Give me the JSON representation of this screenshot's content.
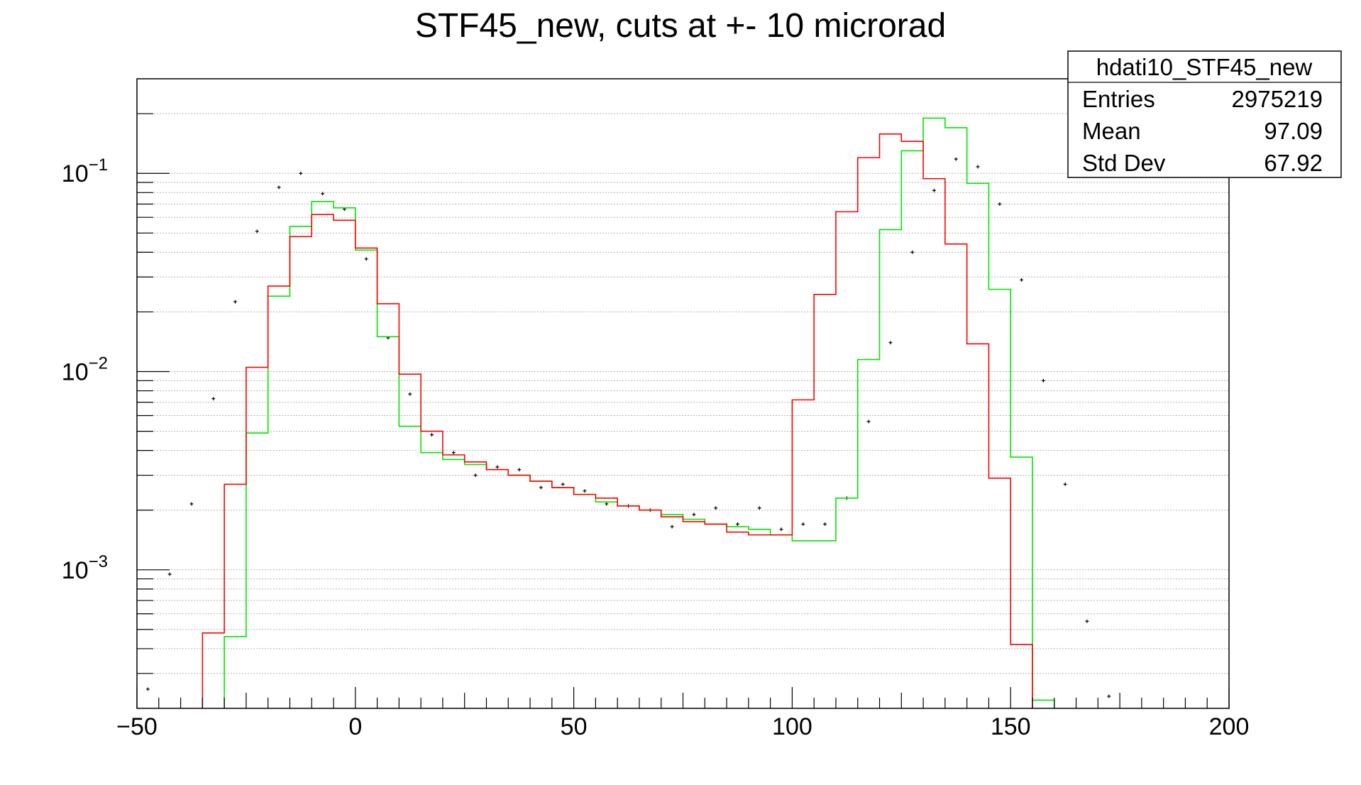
{
  "chart_data": {
    "type": "histogram",
    "title": "STF45_new, cuts at +- 10 microrad",
    "xlabel": "",
    "ylabel": "",
    "xlim": [
      -50,
      200
    ],
    "ylim": [
      0.0002,
      0.3
    ],
    "y_scale": "log",
    "grid": "horizontal",
    "bin_edges": [
      -50,
      -45,
      -40,
      -35,
      -30,
      -25,
      -20,
      -15,
      -10,
      -5,
      0,
      5,
      10,
      15,
      20,
      25,
      30,
      35,
      40,
      45,
      50,
      55,
      60,
      65,
      70,
      75,
      80,
      85,
      90,
      95,
      100,
      105,
      110,
      115,
      120,
      125,
      130,
      135,
      140,
      145,
      150,
      155,
      160,
      165,
      170,
      175,
      180,
      185,
      190,
      195,
      200
    ],
    "x_ticks": [
      -50,
      0,
      50,
      100,
      150,
      200
    ],
    "x_tick_labels": [
      "−50",
      "0",
      "50",
      "100",
      "150",
      "200"
    ],
    "y_ticks": [
      {
        "value": 0.1,
        "base": "10",
        "exp": "−1"
      },
      {
        "value": 0.01,
        "base": "10",
        "exp": "−2"
      },
      {
        "value": 0.001,
        "base": "10",
        "exp": "−3"
      }
    ],
    "series": [
      {
        "style": "points",
        "color": "#000000",
        "values": [
          0.00025,
          0.00095,
          0.00215,
          0.0073,
          0.0225,
          0.051,
          0.085,
          0.1,
          0.079,
          0.066,
          0.037,
          0.0148,
          0.0077,
          0.0048,
          0.0039,
          0.003,
          0.0033,
          0.0032,
          0.0026,
          0.0027,
          0.0025,
          0.00215,
          0.0021,
          0.002,
          0.00165,
          0.0019,
          0.00205,
          0.0017,
          0.00205,
          0.0016,
          0.0017,
          0.0017,
          0.0023,
          0.0056,
          0.014,
          0.04,
          0.082,
          0.118,
          0.108,
          0.07,
          0.029,
          0.009,
          0.0027,
          0.00055,
          0.00023,
          null,
          null,
          null,
          null,
          null
        ]
      },
      {
        "style": "step",
        "color": "#00e600",
        "values": [
          null,
          null,
          null,
          null,
          0.00046,
          0.0049,
          0.024,
          0.054,
          0.072,
          0.067,
          0.041,
          0.015,
          0.0053,
          0.0039,
          0.0036,
          0.0034,
          0.0032,
          0.003,
          0.0028,
          0.0026,
          0.0024,
          0.0022,
          0.0021,
          0.002,
          0.0019,
          0.0018,
          0.0017,
          0.00165,
          0.0016,
          0.0015,
          0.0014,
          0.0014,
          0.0023,
          0.0115,
          0.052,
          0.13,
          0.19,
          0.17,
          0.089,
          0.026,
          0.0037,
          0.00022,
          null,
          null,
          null,
          null,
          null,
          null,
          null,
          null
        ]
      },
      {
        "style": "step",
        "color": "#ff0000",
        "values": [
          null,
          null,
          null,
          0.00048,
          0.0027,
          0.0105,
          0.027,
          0.048,
          0.062,
          0.058,
          0.042,
          0.022,
          0.0097,
          0.005,
          0.0038,
          0.0035,
          0.0032,
          0.003,
          0.0028,
          0.0026,
          0.0024,
          0.0023,
          0.0021,
          0.002,
          0.00185,
          0.00175,
          0.0017,
          0.00155,
          0.0015,
          0.0015,
          0.0072,
          0.0245,
          0.064,
          0.12,
          0.158,
          0.145,
          0.094,
          0.044,
          0.0138,
          0.0029,
          0.00042,
          0.00018,
          null,
          null,
          null,
          null,
          null,
          null,
          null,
          null
        ]
      }
    ],
    "stats_box": {
      "name": "hdati10_STF45_new",
      "rows": [
        {
          "label": "Entries",
          "value": "2975219"
        },
        {
          "label": "Mean",
          "value": "97.09"
        },
        {
          "label": "Std Dev",
          "value": "67.92"
        }
      ]
    }
  }
}
